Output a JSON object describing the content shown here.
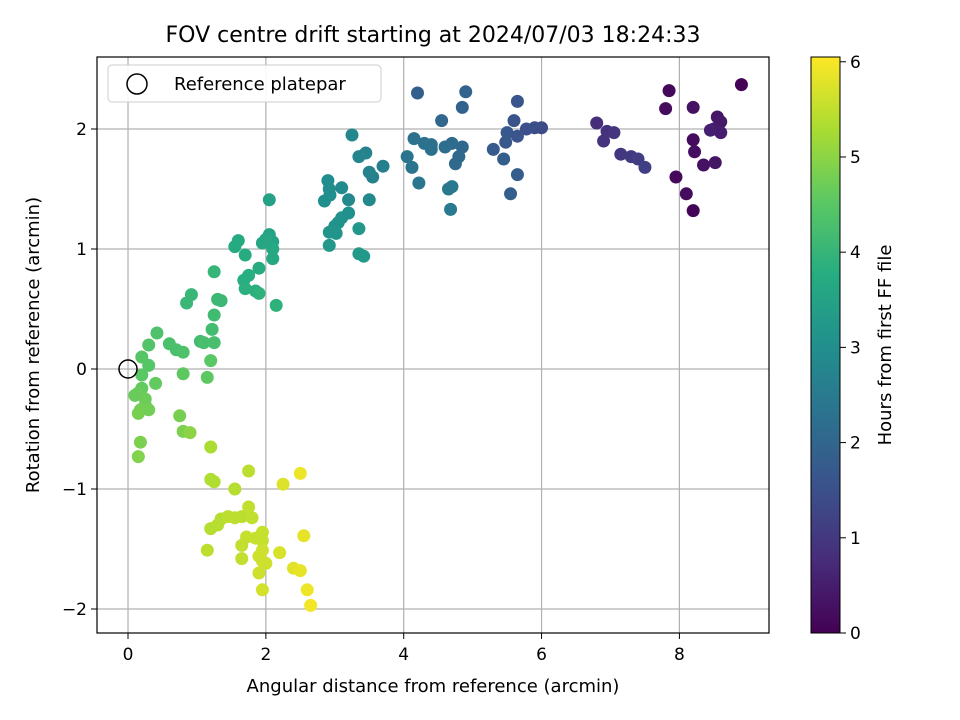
{
  "chart_data": {
    "type": "scatter",
    "title": "FOV centre drift starting at 2024/07/03 18:24:33",
    "xlabel": "Angular distance from reference (arcmin)",
    "ylabel": "Rotation from reference (arcmin)",
    "xlim": [
      -0.45,
      9.3
    ],
    "ylim": [
      -2.2,
      2.6
    ],
    "xticks": [
      0,
      2,
      4,
      6,
      8
    ],
    "yticks": [
      -2,
      -1,
      0,
      1,
      2
    ],
    "xtick_labels": [
      "0",
      "2",
      "4",
      "6",
      "8"
    ],
    "ytick_labels": [
      "−2",
      "−1",
      "0",
      "1",
      "2"
    ],
    "grid": true,
    "legend": {
      "position": "top-left",
      "entries": [
        "Reference platepar"
      ]
    },
    "reference_point": {
      "x": 0,
      "y": 0
    },
    "colorbar": {
      "label": "Hours from first FF file",
      "colormap": "viridis",
      "range": [
        0,
        6.05
      ],
      "ticks": [
        0,
        1,
        2,
        3,
        4,
        5,
        6
      ],
      "tick_labels": [
        "0",
        "1",
        "2",
        "3",
        "4",
        "5",
        "6"
      ]
    },
    "series": [
      {
        "points": [
          [
            8.9,
            2.37,
            0.03
          ],
          [
            7.85,
            2.32,
            0.1
          ],
          [
            7.8,
            2.17,
            0.2
          ],
          [
            8.2,
            2.18,
            0.3
          ],
          [
            8.55,
            2.1,
            0.35
          ],
          [
            8.6,
            2.06,
            0.4
          ],
          [
            8.5,
            2.0,
            0.45
          ],
          [
            8.6,
            1.97,
            0.5
          ],
          [
            8.45,
            1.99,
            0.55
          ],
          [
            8.2,
            1.91,
            0.2
          ],
          [
            8.22,
            1.81,
            0.25
          ],
          [
            8.35,
            1.7,
            0.3
          ],
          [
            8.52,
            1.72,
            0.35
          ],
          [
            7.95,
            1.6,
            0.15
          ],
          [
            8.1,
            1.46,
            0.2
          ],
          [
            8.2,
            1.32,
            0.05
          ],
          [
            6.8,
            2.05,
            0.8
          ],
          [
            6.9,
            1.9,
            0.9
          ],
          [
            6.95,
            1.98,
            0.85
          ],
          [
            7.05,
            1.97,
            0.95
          ],
          [
            7.15,
            1.79,
            1.0
          ],
          [
            7.3,
            1.77,
            1.05
          ],
          [
            7.4,
            1.75,
            1.1
          ],
          [
            7.5,
            1.68,
            1.15
          ],
          [
            6.0,
            2.01,
            1.4
          ],
          [
            5.9,
            2.01,
            1.45
          ],
          [
            5.78,
            2.0,
            1.5
          ],
          [
            5.65,
            2.23,
            1.6
          ],
          [
            5.6,
            2.07,
            1.55
          ],
          [
            5.5,
            1.97,
            1.65
          ],
          [
            5.48,
            1.89,
            1.7
          ],
          [
            5.3,
            1.83,
            1.75
          ],
          [
            5.45,
            1.75,
            1.8
          ],
          [
            5.55,
            1.46,
            1.85
          ],
          [
            5.65,
            1.62,
            1.8
          ],
          [
            5.65,
            1.94,
            1.6
          ],
          [
            4.9,
            2.31,
            1.95
          ],
          [
            4.85,
            2.18,
            1.9
          ],
          [
            4.2,
            2.3,
            1.85
          ],
          [
            4.55,
            2.07,
            2.0
          ],
          [
            4.85,
            1.85,
            2.05
          ],
          [
            4.8,
            1.77,
            2.1
          ],
          [
            4.75,
            1.71,
            2.1
          ],
          [
            4.7,
            1.88,
            2.15
          ],
          [
            4.6,
            1.85,
            2.2
          ],
          [
            4.4,
            1.87,
            2.25
          ],
          [
            4.4,
            1.83,
            2.25
          ],
          [
            4.3,
            1.88,
            2.3
          ],
          [
            4.15,
            1.92,
            2.3
          ],
          [
            4.05,
            1.77,
            2.35
          ],
          [
            4.12,
            1.68,
            2.35
          ],
          [
            4.22,
            1.55,
            2.4
          ],
          [
            4.65,
            1.5,
            2.45
          ],
          [
            4.7,
            1.52,
            2.45
          ],
          [
            4.68,
            1.33,
            2.5
          ],
          [
            3.7,
            1.69,
            2.6
          ],
          [
            3.55,
            1.6,
            2.65
          ],
          [
            3.5,
            1.64,
            2.7
          ],
          [
            3.45,
            1.8,
            2.7
          ],
          [
            3.35,
            1.77,
            2.75
          ],
          [
            3.25,
            1.95,
            2.8
          ],
          [
            3.5,
            1.41,
            2.85
          ],
          [
            3.2,
            1.41,
            2.85
          ],
          [
            3.1,
            1.51,
            2.9
          ],
          [
            2.9,
            1.57,
            2.95
          ],
          [
            2.92,
            1.5,
            2.95
          ],
          [
            2.93,
            1.45,
            3.0
          ],
          [
            2.85,
            1.4,
            3.0
          ],
          [
            3.2,
            1.3,
            3.05
          ],
          [
            3.1,
            1.26,
            3.05
          ],
          [
            3.05,
            1.22,
            3.1
          ],
          [
            3.0,
            1.19,
            3.1
          ],
          [
            3.02,
            1.13,
            3.15
          ],
          [
            2.92,
            1.14,
            3.15
          ],
          [
            2.92,
            1.03,
            3.2
          ],
          [
            3.35,
            1.17,
            3.2
          ],
          [
            3.35,
            0.96,
            3.25
          ],
          [
            3.42,
            0.94,
            3.25
          ],
          [
            2.05,
            1.41,
            3.5
          ],
          [
            2.05,
            1.12,
            3.55
          ],
          [
            2.1,
            1.06,
            3.55
          ],
          [
            2.0,
            1.08,
            3.6
          ],
          [
            1.95,
            1.05,
            3.6
          ],
          [
            2.1,
            1.0,
            3.65
          ],
          [
            2.1,
            0.92,
            3.65
          ],
          [
            1.6,
            1.07,
            3.7
          ],
          [
            1.55,
            1.02,
            3.7
          ],
          [
            1.7,
            0.95,
            3.75
          ],
          [
            1.9,
            0.84,
            3.75
          ],
          [
            1.75,
            0.78,
            3.8
          ],
          [
            1.68,
            0.74,
            3.8
          ],
          [
            1.7,
            0.67,
            3.85
          ],
          [
            1.85,
            0.65,
            3.85
          ],
          [
            1.9,
            0.63,
            3.9
          ],
          [
            2.15,
            0.53,
            3.9
          ],
          [
            1.25,
            0.81,
            4.0
          ],
          [
            0.92,
            0.62,
            4.05
          ],
          [
            0.85,
            0.55,
            4.05
          ],
          [
            1.3,
            0.58,
            4.1
          ],
          [
            1.35,
            0.57,
            4.1
          ],
          [
            1.25,
            0.45,
            4.15
          ],
          [
            1.22,
            0.33,
            4.2
          ],
          [
            1.05,
            0.23,
            4.2
          ],
          [
            1.1,
            0.22,
            4.25
          ],
          [
            1.25,
            0.22,
            4.25
          ],
          [
            0.6,
            0.21,
            4.3
          ],
          [
            0.7,
            0.16,
            4.3
          ],
          [
            0.8,
            0.14,
            4.35
          ],
          [
            0.42,
            0.3,
            4.35
          ],
          [
            0.3,
            0.2,
            4.4
          ],
          [
            0.2,
            0.1,
            4.45
          ],
          [
            0.3,
            0.03,
            4.45
          ],
          [
            1.2,
            0.07,
            4.5
          ],
          [
            0.2,
            -0.05,
            4.5
          ],
          [
            0.8,
            -0.04,
            4.55
          ],
          [
            1.15,
            -0.07,
            4.55
          ],
          [
            0.4,
            -0.12,
            4.6
          ],
          [
            0.2,
            -0.16,
            4.6
          ],
          [
            0.15,
            -0.2,
            4.65
          ],
          [
            0.1,
            -0.22,
            4.65
          ],
          [
            0.25,
            -0.25,
            4.7
          ],
          [
            0.25,
            -0.3,
            4.7
          ],
          [
            0.3,
            -0.34,
            4.75
          ],
          [
            0.18,
            -0.34,
            4.75
          ],
          [
            0.15,
            -0.37,
            4.8
          ],
          [
            0.75,
            -0.39,
            4.8
          ],
          [
            0.8,
            -0.52,
            4.85
          ],
          [
            0.18,
            -0.61,
            4.85
          ],
          [
            0.15,
            -0.73,
            4.9
          ],
          [
            0.9,
            -0.53,
            5.0
          ],
          [
            1.2,
            -0.65,
            5.3
          ],
          [
            1.2,
            -0.92,
            5.35
          ],
          [
            1.25,
            -0.94,
            5.35
          ],
          [
            1.75,
            -0.85,
            5.45
          ],
          [
            1.55,
            -1.0,
            5.4
          ],
          [
            1.35,
            -1.25,
            5.4
          ],
          [
            1.3,
            -1.3,
            5.4
          ],
          [
            1.2,
            -1.33,
            5.4
          ],
          [
            1.45,
            -1.23,
            5.45
          ],
          [
            1.55,
            -1.24,
            5.45
          ],
          [
            1.65,
            -1.23,
            5.45
          ],
          [
            1.75,
            -1.15,
            5.5
          ],
          [
            1.8,
            -1.24,
            5.5
          ],
          [
            1.95,
            -1.36,
            5.55
          ],
          [
            1.95,
            -1.43,
            5.55
          ],
          [
            1.85,
            -1.41,
            5.55
          ],
          [
            1.72,
            -1.4,
            5.55
          ],
          [
            1.65,
            -1.47,
            5.5
          ],
          [
            1.65,
            -1.58,
            5.5
          ],
          [
            1.15,
            -1.51,
            5.45
          ],
          [
            1.95,
            -1.51,
            5.6
          ],
          [
            1.9,
            -1.56,
            5.6
          ],
          [
            1.95,
            -1.6,
            5.6
          ],
          [
            2.0,
            -1.62,
            5.6
          ],
          [
            1.9,
            -1.7,
            5.6
          ],
          [
            1.95,
            -1.84,
            5.65
          ],
          [
            2.2,
            -1.53,
            5.7
          ],
          [
            2.25,
            -0.96,
            5.75
          ],
          [
            2.5,
            -0.87,
            5.9
          ],
          [
            2.55,
            -1.39,
            5.85
          ],
          [
            2.4,
            -1.66,
            5.8
          ],
          [
            2.5,
            -1.68,
            5.85
          ],
          [
            2.6,
            -1.84,
            5.9
          ],
          [
            2.65,
            -1.97,
            5.95
          ]
        ]
      }
    ]
  }
}
